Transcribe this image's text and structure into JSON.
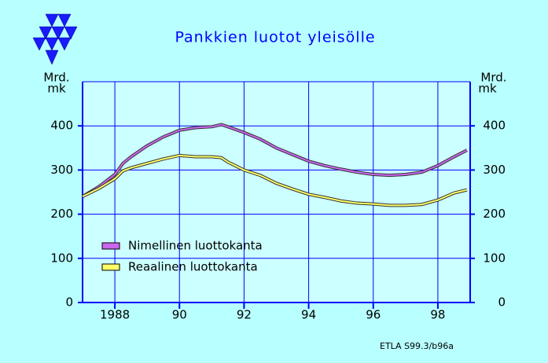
{
  "chart_data": {
    "type": "line",
    "title": "Pankkien luotot yleisölle",
    "ylabel_lines": [
      "Mrd.",
      "mk"
    ],
    "y2label_lines": [
      "Mrd.",
      "mk"
    ],
    "note": "ETLA S99.3/b96a",
    "x": [
      1987.0,
      1987.5,
      1988.0,
      1988.25,
      1988.5,
      1989.0,
      1989.5,
      1990.0,
      1990.5,
      1991.0,
      1991.3,
      1991.5,
      1992.0,
      1992.5,
      1993.0,
      1993.5,
      1994.0,
      1994.5,
      1995.0,
      1995.5,
      1996.0,
      1996.5,
      1997.0,
      1997.5,
      1998.0,
      1998.5,
      1998.9
    ],
    "series": [
      {
        "name": "Nimellinen luottokanta",
        "color": "#cc66ee",
        "values": [
          240,
          262,
          290,
          315,
          330,
          355,
          375,
          390,
          396,
          398,
          403,
          398,
          385,
          370,
          350,
          335,
          320,
          310,
          302,
          295,
          290,
          288,
          290,
          295,
          310,
          330,
          345
        ]
      },
      {
        "name": "Reaalinen luottokanta",
        "color": "#ffff66",
        "values": [
          240,
          258,
          280,
          298,
          305,
          315,
          325,
          333,
          330,
          330,
          328,
          318,
          300,
          288,
          270,
          257,
          245,
          238,
          230,
          225,
          223,
          220,
          220,
          222,
          232,
          248,
          255
        ]
      }
    ],
    "xlim": [
      1987,
      1999
    ],
    "xticks": [
      {
        "value": 1988,
        "label": "1988"
      },
      {
        "value": 1990,
        "label": "90"
      },
      {
        "value": 1992,
        "label": "92"
      },
      {
        "value": 1994,
        "label": "94"
      },
      {
        "value": 1996,
        "label": "96"
      },
      {
        "value": 1998,
        "label": "98"
      }
    ],
    "ylim": [
      0,
      500
    ],
    "yticks": [
      0,
      100,
      200,
      300,
      400
    ],
    "y2lim": [
      0,
      500
    ],
    "y2ticks": [
      0,
      100,
      200,
      300,
      400
    ],
    "grid": true,
    "legend": "left"
  }
}
